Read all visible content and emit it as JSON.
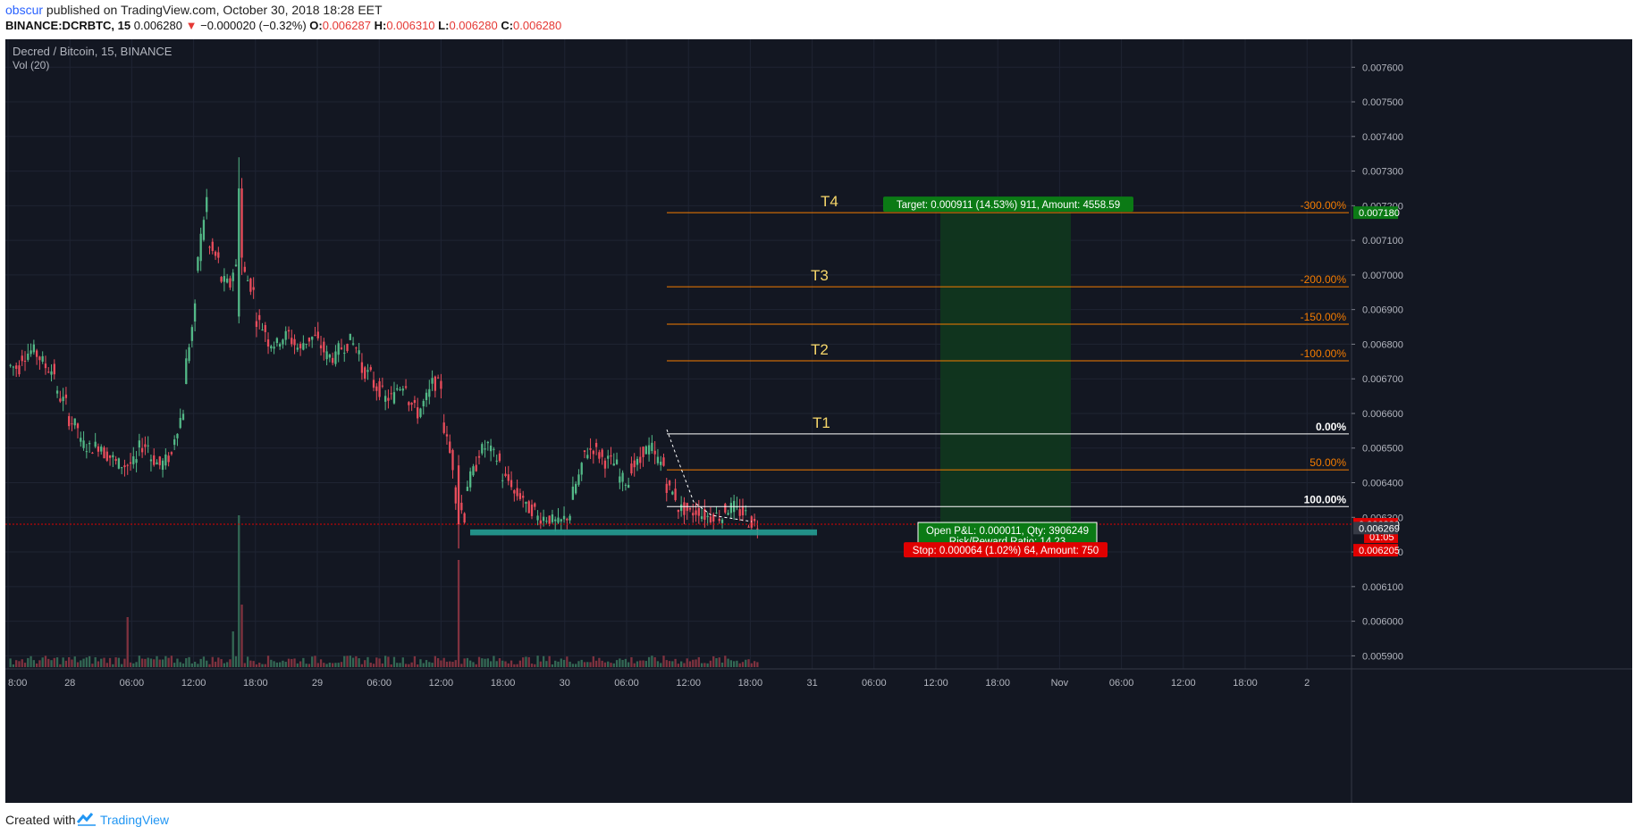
{
  "header": {
    "author": "obscur",
    "published_text": " published on TradingView.com, October 30, 2018 18:28 EET",
    "symbol": "BINANCE:DCRBTC, 15",
    "last": "0.006280",
    "change": "−0.000020 (−0.32%)",
    "o_label": "O:",
    "o": "0.006287",
    "h_label": "H:",
    "h": "0.006310",
    "l_label": "L:",
    "l": "0.006280",
    "c_label": "C:",
    "c": "0.006280",
    "change_color": "#e53935",
    "author_color": "#2962ff"
  },
  "legend": {
    "title": "Decred / Bitcoin, 15, BINANCE",
    "volume": "Vol (20)"
  },
  "footer": {
    "created_with": "Created with",
    "brand": "TradingView"
  },
  "colors": {
    "background": "#131722",
    "up": "#53b987",
    "down": "#eb4d5c",
    "vol_up": "#336854",
    "vol_down": "#7f323f",
    "fib_orange": "#f57c00",
    "fib_white": "#ffffff",
    "target_green": "#0b7a15",
    "stop_red": "#e00000",
    "zone_teal": "#26a69a",
    "t_labels": "#f7d76a"
  },
  "chart_data": {
    "type": "candlestick",
    "title": "Decred / Bitcoin, 15, BINANCE",
    "y_ticks": [
      "0.007600",
      "0.007500",
      "0.007400",
      "0.007300",
      "0.007200",
      "0.007100",
      "0.007000",
      "0.006900",
      "0.006800",
      "0.006700",
      "0.006600",
      "0.006500",
      "0.006400",
      "0.006300",
      "0.006200",
      "0.006100",
      "0.006000",
      "0.005900"
    ],
    "y_range": [
      0.00587,
      0.00766
    ],
    "x_ticks": [
      "8:00",
      "28",
      "06:00",
      "12:00",
      "18:00",
      "29",
      "06:00",
      "12:00",
      "18:00",
      "30",
      "06:00",
      "12:00",
      "18:00",
      "31",
      "06:00",
      "12:00",
      "18:00",
      "Nov",
      "06:00",
      "12:00",
      "18:00",
      "2"
    ],
    "grid": true,
    "price_path": [
      [
        0.00674,
        0.00673
      ],
      [
        0.00676,
        0.00678
      ],
      [
        0.00679,
        0.00675
      ],
      [
        0.00674,
        0.00672
      ],
      [
        0.00666,
        0.00663
      ],
      [
        0.00659,
        0.00656
      ],
      [
        0.00652,
        0.0065
      ],
      [
        0.0065,
        0.00651
      ],
      [
        0.00649,
        0.00647
      ],
      [
        0.00646,
        0.00645
      ],
      [
        0.00645,
        0.00646
      ],
      [
        0.0065,
        0.00651
      ],
      [
        0.00648,
        0.00645
      ],
      [
        0.00645,
        0.00648
      ],
      [
        0.00651,
        0.00661
      ],
      [
        0.0067,
        0.0069
      ],
      [
        0.007,
        0.00722
      ],
      [
        0.00709,
        0.00704
      ],
      [
        0.00699,
        0.00697
      ],
      [
        0.007,
        0.00705
      ],
      [
        0.00702,
        0.00695
      ],
      [
        0.00688,
        0.00684
      ],
      [
        0.00681,
        0.0068
      ],
      [
        0.00681,
        0.00683
      ],
      [
        0.00682,
        0.00678
      ],
      [
        0.0068,
        0.00682
      ],
      [
        0.00683,
        0.00678
      ],
      [
        0.00677,
        0.00676
      ],
      [
        0.00678,
        0.0068
      ],
      [
        0.00682,
        0.00678
      ],
      [
        0.00673,
        0.00671
      ],
      [
        0.00669,
        0.00666
      ],
      [
        0.00664,
        0.00665
      ],
      [
        0.00667,
        0.00669
      ],
      [
        0.00665,
        0.0066
      ],
      [
        0.0066,
        0.00666
      ],
      [
        0.00669,
        0.00668
      ],
      [
        0.00659,
        0.00645
      ],
      [
        0.00638,
        0.0063
      ],
      [
        0.00638,
        0.00645
      ],
      [
        0.00648,
        0.00651
      ],
      [
        0.0065,
        0.00646
      ],
      [
        0.00642,
        0.0064
      ],
      [
        0.00637,
        0.00636
      ],
      [
        0.00633,
        0.00632
      ],
      [
        0.0063,
        0.0063
      ],
      [
        0.0063,
        0.00628
      ],
      [
        0.00628,
        0.00631
      ],
      [
        0.00635,
        0.00644
      ],
      [
        0.00648,
        0.0065
      ],
      [
        0.0065,
        0.00646
      ],
      [
        0.00647,
        0.00645
      ],
      [
        0.00642,
        0.0064
      ],
      [
        0.00644,
        0.00646
      ],
      [
        0.00649,
        0.0065
      ],
      [
        0.00648,
        0.00645
      ],
      [
        0.0064,
        0.00636
      ],
      [
        0.00633,
        0.00632
      ],
      [
        0.00631,
        0.00632
      ],
      [
        0.00631,
        0.0063
      ],
      [
        0.00631,
        0.0063
      ],
      [
        0.00632,
        0.00633
      ],
      [
        0.00632,
        0.00631
      ],
      [
        0.00629,
        0.00628
      ]
    ],
    "levels": [
      {
        "label": "-300.00%",
        "price": 0.00718,
        "color": "orange",
        "tag": "T4"
      },
      {
        "label": "-200.00%",
        "price": 0.006966,
        "color": "orange",
        "tag": "T3"
      },
      {
        "label": "-150.00%",
        "price": 0.006858,
        "color": "orange",
        "tag": ""
      },
      {
        "label": "-100.00%",
        "price": 0.006752,
        "color": "orange",
        "tag": "T2"
      },
      {
        "label": "0.00%",
        "price": 0.006541,
        "color": "white",
        "tag": "T1"
      },
      {
        "label": "50.00%",
        "price": 0.006437,
        "color": "orange",
        "tag": ""
      },
      {
        "label": "100.00%",
        "price": 0.006331,
        "color": "white",
        "tag": ""
      }
    ],
    "current_price": 0.00628,
    "current_price_label": "0.006280",
    "current_countdown": "01:05",
    "hover_price_label": "0.006269",
    "hover_price": 0.006269,
    "stop_price_label": "0.006205",
    "stop_price": 0.006205,
    "target_price_label": "0.007180",
    "target_price": 0.00718,
    "support_zone": [
      0.006265,
      0.006248
    ],
    "position": {
      "target_text": "Target: 0.000911 (14.53%) 911, Amount: 4558.59",
      "pnl_text": "Open P&L: 0.000011, Qty: 3906249",
      "rr_text": "Risk/Reward Ratio: 14.23",
      "stop_text": "Stop: 0.000064 (1.02%) 64, Amount: 750"
    }
  }
}
